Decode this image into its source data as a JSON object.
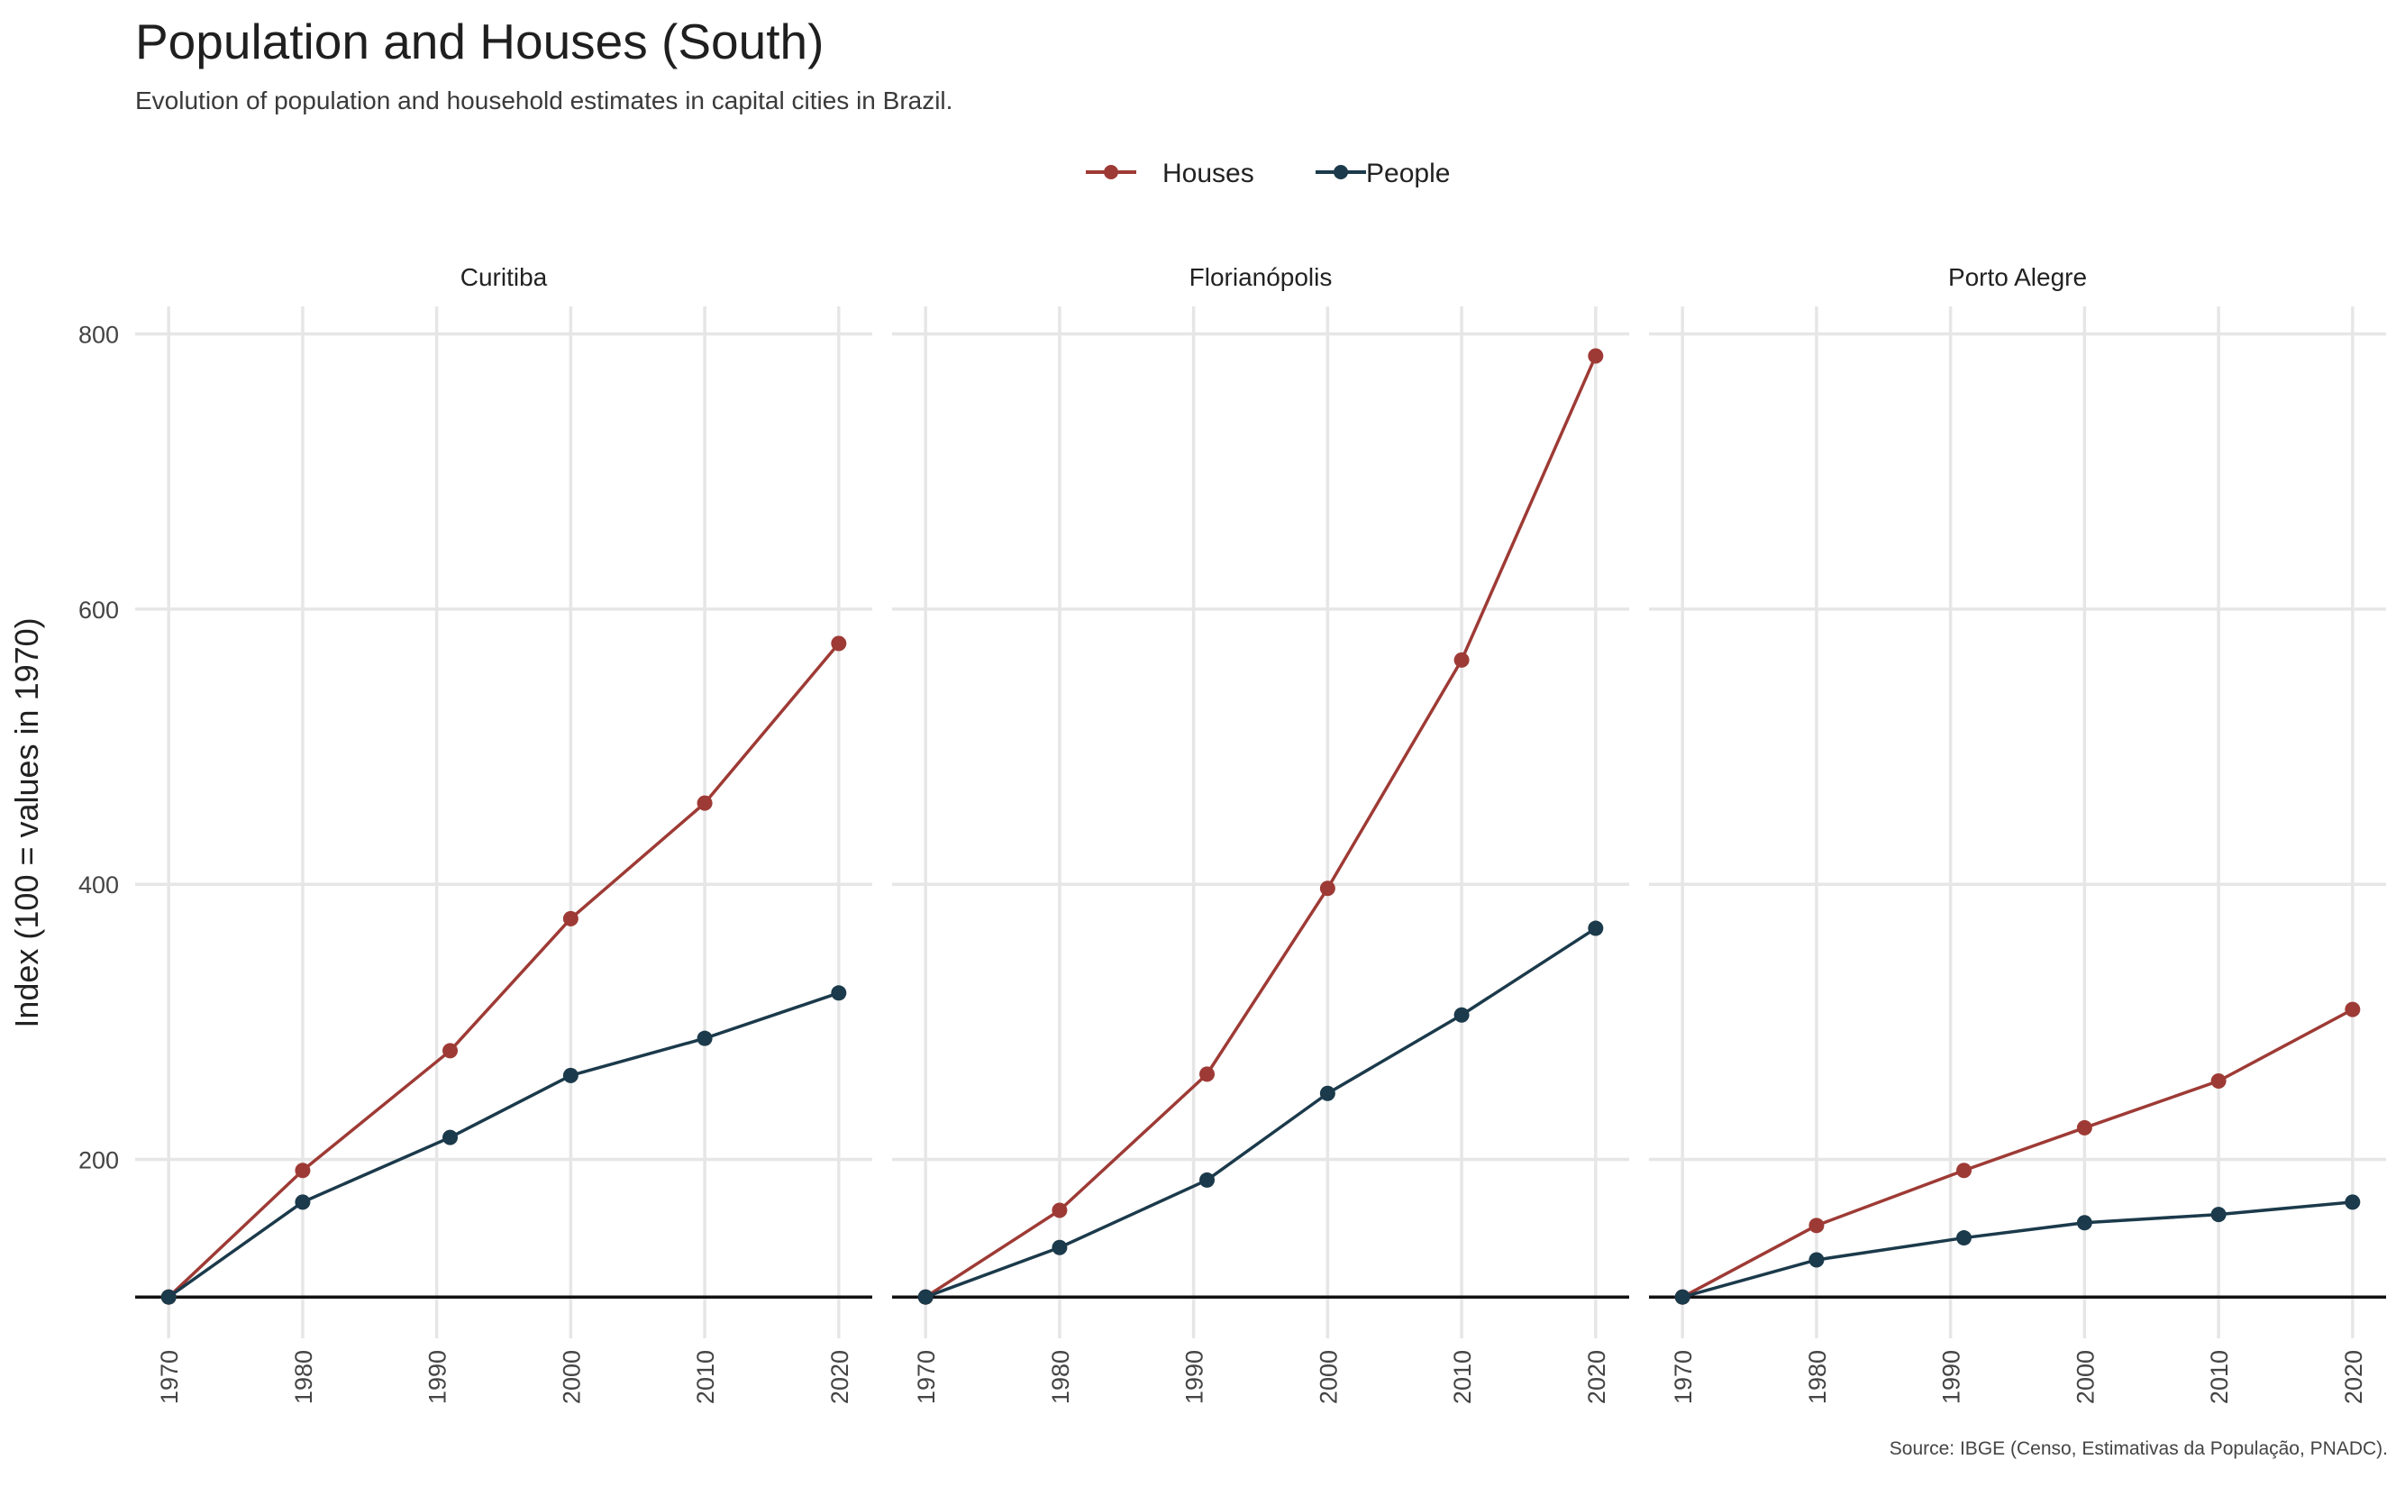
{
  "title": "Population and Houses (South)",
  "subtitle": "Evolution of population and household estimates in capital cities in Brazil.",
  "caption": "Source: IBGE (Censo, Estimativas da População, PNADC).",
  "colors": {
    "Houses": "#9E3A35",
    "People": "#1B3A4B",
    "grid": "#e6e6e6",
    "baseline": "#111111"
  },
  "chart_data": {
    "type": "line",
    "ylabel": "Index (100 = values in 1970)",
    "ylim": [
      70,
      820
    ],
    "y_ticks": [
      200,
      400,
      600,
      800
    ],
    "x_ticks": [
      "1970",
      "1980",
      "1990",
      "2000",
      "2010",
      "2020"
    ],
    "xlim": [
      1967.5,
      2022.5
    ],
    "baseline": 100,
    "legend": {
      "position": "top",
      "entries": [
        "Houses",
        "People"
      ]
    },
    "facets": [
      {
        "name": "Curitiba",
        "series": [
          {
            "name": "Houses",
            "x": [
              1970,
              1980,
              1991,
              2000,
              2010,
              2020
            ],
            "y": [
              100,
              192,
              279,
              375,
              459,
              575
            ]
          },
          {
            "name": "People",
            "x": [
              1970,
              1980,
              1991,
              2000,
              2010,
              2020
            ],
            "y": [
              100,
              169,
              216,
              261,
              288,
              321
            ]
          }
        ]
      },
      {
        "name": "Florianópolis",
        "series": [
          {
            "name": "Houses",
            "x": [
              1970,
              1980,
              1991,
              2000,
              2010,
              2020
            ],
            "y": [
              100,
              163,
              262,
              397,
              563,
              784
            ]
          },
          {
            "name": "People",
            "x": [
              1970,
              1980,
              1991,
              2000,
              2010,
              2020
            ],
            "y": [
              100,
              136,
              185,
              248,
              305,
              368
            ]
          }
        ]
      },
      {
        "name": "Porto Alegre",
        "series": [
          {
            "name": "Houses",
            "x": [
              1970,
              1980,
              1991,
              2000,
              2010,
              2020
            ],
            "y": [
              100,
              152,
              192,
              223,
              257,
              309
            ]
          },
          {
            "name": "People",
            "x": [
              1970,
              1980,
              1991,
              2000,
              2010,
              2020
            ],
            "y": [
              100,
              127,
              143,
              154,
              160,
              169
            ]
          }
        ]
      }
    ]
  }
}
